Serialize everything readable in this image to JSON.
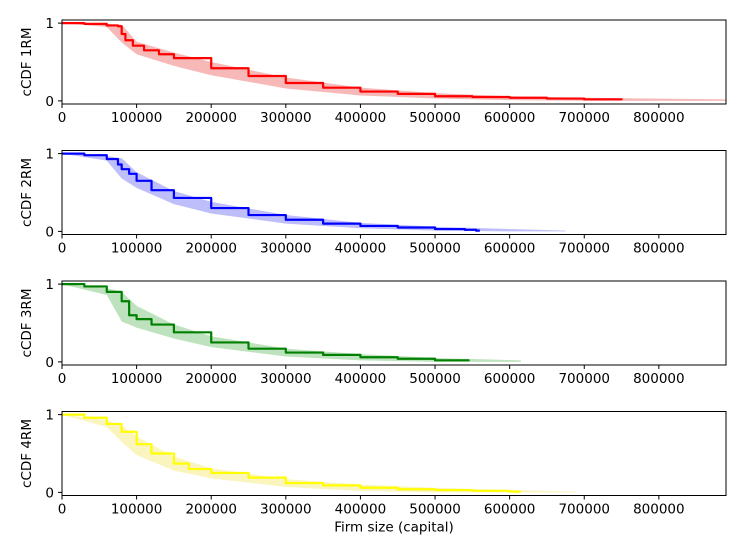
{
  "chart_data": [
    {
      "type": "line",
      "ylabel": "cCDF 1RM",
      "xlabel": "",
      "xlim": [
        0,
        890000
      ],
      "ylim": [
        -0.04,
        1.04
      ],
      "xticks": [
        "0",
        "100000",
        "200000",
        "300000",
        "400000",
        "500000",
        "600000",
        "700000",
        "800000"
      ],
      "yticks": [
        "0",
        "1"
      ],
      "color": "#ff0000",
      "band_color": "#f4a0a0",
      "series": [
        {
          "x": [
            0,
            30000,
            60000,
            75000,
            80000,
            85000,
            95000,
            110000,
            130000,
            150000,
            200000,
            250000,
            300000,
            350000,
            400000,
            450000,
            500000,
            550000,
            600000,
            650000,
            700000,
            750000
          ],
          "y": [
            1.0,
            0.99,
            0.97,
            0.96,
            0.86,
            0.78,
            0.71,
            0.65,
            0.6,
            0.55,
            0.42,
            0.32,
            0.23,
            0.17,
            0.12,
            0.09,
            0.06,
            0.05,
            0.04,
            0.03,
            0.02,
            0.01
          ]
        }
      ],
      "band": {
        "x": [
          0,
          60000,
          80000,
          100000,
          150000,
          200000,
          300000,
          400000,
          500000,
          600000,
          700000,
          890000
        ],
        "lower": [
          1.0,
          0.95,
          0.75,
          0.6,
          0.45,
          0.33,
          0.16,
          0.07,
          0.03,
          0.01,
          0.0,
          0.0
        ],
        "upper": [
          1.0,
          0.99,
          0.98,
          0.76,
          0.62,
          0.5,
          0.3,
          0.17,
          0.1,
          0.06,
          0.04,
          0.02
        ]
      }
    },
    {
      "type": "line",
      "ylabel": "cCDF 2RM",
      "xlabel": "",
      "xlim": [
        0,
        890000
      ],
      "ylim": [
        -0.04,
        1.04
      ],
      "xticks": [
        "0",
        "100000",
        "200000",
        "300000",
        "400000",
        "500000",
        "600000",
        "700000",
        "800000"
      ],
      "yticks": [
        "0",
        "1"
      ],
      "color": "#0000ff",
      "band_color": "#a8a8f8",
      "series": [
        {
          "x": [
            0,
            30000,
            60000,
            75000,
            80000,
            90000,
            100000,
            120000,
            150000,
            200000,
            250000,
            300000,
            350000,
            400000,
            450000,
            500000,
            540000,
            555000,
            560000
          ],
          "y": [
            1.0,
            0.98,
            0.93,
            0.86,
            0.8,
            0.74,
            0.65,
            0.53,
            0.43,
            0.3,
            0.21,
            0.15,
            0.1,
            0.07,
            0.05,
            0.03,
            0.02,
            0.01,
            0.01
          ]
        }
      ],
      "band": {
        "x": [
          0,
          60000,
          80000,
          100000,
          150000,
          200000,
          300000,
          400000,
          500000,
          600000,
          675000
        ],
        "lower": [
          1.0,
          0.91,
          0.68,
          0.56,
          0.35,
          0.23,
          0.1,
          0.04,
          0.01,
          0.0,
          0.0
        ],
        "upper": [
          1.0,
          0.97,
          0.94,
          0.76,
          0.52,
          0.38,
          0.21,
          0.11,
          0.06,
          0.03,
          0.01
        ]
      }
    },
    {
      "type": "line",
      "ylabel": "cCDF 3RM",
      "xlabel": "",
      "xlim": [
        0,
        890000
      ],
      "ylim": [
        -0.04,
        1.04
      ],
      "xticks": [
        "0",
        "100000",
        "200000",
        "300000",
        "400000",
        "500000",
        "600000",
        "700000",
        "800000"
      ],
      "yticks": [
        "0",
        "1"
      ],
      "color": "#008000",
      "band_color": "#a8d8a8",
      "series": [
        {
          "x": [
            0,
            30000,
            60000,
            80000,
            90000,
            100000,
            120000,
            150000,
            200000,
            250000,
            300000,
            350000,
            400000,
            450000,
            500000,
            540000,
            545000
          ],
          "y": [
            1.0,
            0.97,
            0.9,
            0.78,
            0.6,
            0.55,
            0.48,
            0.38,
            0.25,
            0.17,
            0.12,
            0.09,
            0.06,
            0.04,
            0.02,
            0.02,
            0.01
          ]
        }
      ],
      "band": {
        "x": [
          0,
          60000,
          80000,
          100000,
          150000,
          200000,
          300000,
          400000,
          500000,
          615000
        ],
        "lower": [
          1.0,
          0.86,
          0.52,
          0.44,
          0.3,
          0.19,
          0.07,
          0.02,
          0.0,
          0.0
        ],
        "upper": [
          1.0,
          0.95,
          0.9,
          0.72,
          0.48,
          0.33,
          0.17,
          0.1,
          0.05,
          0.02
        ]
      }
    },
    {
      "type": "line",
      "ylabel": "cCDF 4RM",
      "xlabel": "Firm size (capital)",
      "xlim": [
        0,
        890000
      ],
      "ylim": [
        -0.04,
        1.04
      ],
      "xticks": [
        "0",
        "100000",
        "200000",
        "300000",
        "400000",
        "500000",
        "600000",
        "700000",
        "800000"
      ],
      "yticks": [
        "0",
        "1"
      ],
      "color": "#ffff00",
      "band_color": "#f8f0a8",
      "series": [
        {
          "x": [
            0,
            30000,
            60000,
            80000,
            100000,
            120000,
            150000,
            170000,
            200000,
            250000,
            300000,
            350000,
            400000,
            450000,
            500000,
            550000,
            600000,
            615000
          ],
          "y": [
            1.0,
            0.96,
            0.88,
            0.78,
            0.62,
            0.5,
            0.37,
            0.3,
            0.25,
            0.19,
            0.12,
            0.09,
            0.06,
            0.04,
            0.03,
            0.02,
            0.01,
            0.01
          ]
        }
      ],
      "band": {
        "x": [
          0,
          60000,
          80000,
          100000,
          150000,
          200000,
          300000,
          400000,
          500000,
          600000,
          690000
        ],
        "lower": [
          1.0,
          0.84,
          0.65,
          0.48,
          0.28,
          0.18,
          0.07,
          0.02,
          0.0,
          0.0,
          0.0
        ],
        "upper": [
          1.0,
          0.93,
          0.86,
          0.72,
          0.46,
          0.31,
          0.17,
          0.1,
          0.06,
          0.03,
          0.01
        ]
      }
    }
  ]
}
